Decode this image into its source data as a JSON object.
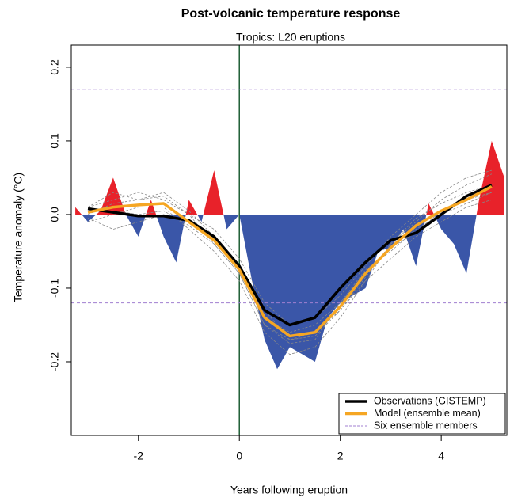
{
  "chart_data": {
    "type": "line",
    "title": "Post-volcanic temperature response",
    "subtitle": "Tropics: L20 eruptions",
    "x_label": "Years following eruption",
    "y_label": "Temperature anomaly (°C)",
    "xlim": [
      -3.33,
      5.3
    ],
    "ylim": [
      -0.3,
      0.23
    ],
    "xticks": [
      -2,
      0,
      2,
      4
    ],
    "yticks": [
      -0.2,
      -0.1,
      {
        "value": 0,
        "label": "0.0"
      },
      0.1,
      0.2
    ],
    "vline": {
      "value": 0,
      "color": "#1e5e35"
    },
    "hlines": {
      "values": [
        0.17,
        -0.12
      ],
      "color": "#a07fd0"
    },
    "area": {
      "x": [
        -3.25,
        -3,
        -2.75,
        -2.5,
        -2.25,
        -2,
        -1.75,
        -1.5,
        -1.25,
        -1,
        -0.75,
        -0.5,
        -0.25,
        0,
        0.25,
        0.5,
        0.75,
        1,
        1.25,
        1.5,
        1.75,
        2,
        2.25,
        2.5,
        2.75,
        3,
        3.25,
        3.5,
        3.75,
        4,
        4.25,
        4.5,
        4.75,
        5,
        5.25
      ],
      "values": [
        0.01,
        -0.01,
        0.005,
        0.05,
        0.0,
        -0.03,
        0.02,
        -0.03,
        -0.065,
        0.02,
        -0.01,
        0.06,
        -0.02,
        0.0,
        -0.09,
        -0.17,
        -0.21,
        -0.18,
        -0.19,
        -0.2,
        -0.14,
        -0.12,
        -0.11,
        -0.1,
        -0.05,
        -0.045,
        -0.02,
        -0.07,
        0.015,
        -0.02,
        -0.04,
        -0.08,
        0.02,
        0.1,
        0.05
      ],
      "positive_color": "#e8222a",
      "negative_color": "#3a56a8"
    },
    "x": [
      -3,
      -2.5,
      -2,
      -1.5,
      -1,
      -0.5,
      0,
      0.5,
      1,
      1.5,
      2,
      2.5,
      3,
      3.5,
      4,
      4.5,
      5
    ],
    "ensemble": {
      "name": "Six ensemble members",
      "color": "#888888",
      "members": [
        [
          0.01,
          0.02,
          0.03,
          0.02,
          0.0,
          -0.02,
          -0.06,
          -0.12,
          -0.15,
          -0.14,
          -0.11,
          -0.07,
          -0.03,
          0.0,
          0.03,
          0.05,
          0.06
        ],
        [
          -0.01,
          0.0,
          0.01,
          0.01,
          -0.02,
          -0.05,
          -0.09,
          -0.16,
          -0.19,
          -0.18,
          -0.14,
          -0.09,
          -0.06,
          -0.03,
          -0.01,
          0.01,
          0.02
        ],
        [
          0.0,
          0.015,
          0.02,
          0.03,
          0.005,
          -0.03,
          -0.07,
          -0.13,
          -0.17,
          -0.165,
          -0.13,
          -0.085,
          -0.04,
          -0.01,
          0.02,
          0.04,
          0.055
        ],
        [
          0.005,
          0.005,
          0.0,
          0.005,
          -0.015,
          -0.04,
          -0.08,
          -0.15,
          -0.175,
          -0.17,
          -0.12,
          -0.075,
          -0.05,
          -0.02,
          0.0,
          0.015,
          0.03
        ],
        [
          -0.005,
          -0.02,
          -0.01,
          0.0,
          -0.01,
          -0.03,
          -0.07,
          -0.14,
          -0.16,
          -0.15,
          -0.12,
          -0.08,
          -0.045,
          -0.025,
          0.005,
          0.02,
          0.03
        ],
        [
          0.01,
          0.03,
          0.02,
          0.025,
          0.0,
          -0.04,
          -0.08,
          -0.15,
          -0.17,
          -0.16,
          -0.13,
          -0.09,
          -0.04,
          -0.005,
          0.015,
          0.03,
          0.04
        ]
      ]
    },
    "series": [
      {
        "name": "Observations (GISTEMP)",
        "color": "#000000",
        "values": [
          0.008,
          0.003,
          -0.002,
          -0.002,
          -0.008,
          -0.03,
          -0.07,
          -0.13,
          -0.15,
          -0.14,
          -0.1,
          -0.065,
          -0.035,
          -0.025,
          0.0,
          0.025,
          0.04
        ]
      },
      {
        "name": "Model (ensemble mean)",
        "color": "#f5a623",
        "values": [
          0.003,
          0.01,
          0.013,
          0.015,
          -0.01,
          -0.035,
          -0.075,
          -0.14,
          -0.165,
          -0.16,
          -0.125,
          -0.08,
          -0.045,
          -0.015,
          0.005,
          0.02,
          0.038
        ]
      }
    ]
  }
}
